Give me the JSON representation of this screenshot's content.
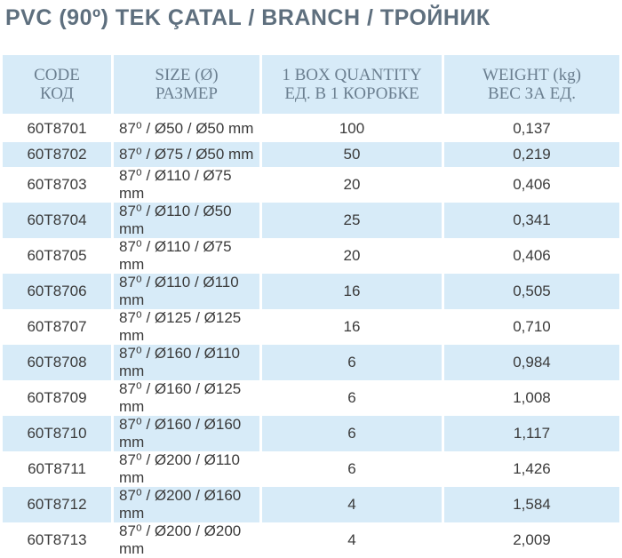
{
  "header": {
    "title": "PVC (90º) TEK ÇATAL / BRANCH / ТРОЙНИК"
  },
  "table": {
    "columns": [
      [
        "CODE",
        "КОД"
      ],
      [
        "SIZE (Ø)",
        "РАЗМЕР"
      ],
      [
        "1 BOX QUANTITY",
        "ЕД. В 1 КОРОБКЕ"
      ],
      [
        "WEIGHT (kg)",
        "ВЕС ЗА ЕД."
      ]
    ],
    "rows": [
      [
        "60T8701",
        "87⁰ / Ø50 / Ø50 mm",
        "100",
        "0,137"
      ],
      [
        "60T8702",
        "87⁰ / Ø75 / Ø50 mm",
        "50",
        "0,219"
      ],
      [
        "60T8703",
        "87⁰ / Ø110 / Ø75 mm",
        "20",
        "0,406"
      ],
      [
        "60T8704",
        "87⁰ / Ø110 / Ø50 mm",
        "25",
        "0,341"
      ],
      [
        "60T8705",
        "87⁰ / Ø110 / Ø75 mm",
        "20",
        "0,406"
      ],
      [
        "60T8706",
        "87⁰ / Ø110 / Ø110 mm",
        "16",
        "0,505"
      ],
      [
        "60T8707",
        "87⁰ / Ø125 / Ø125 mm",
        "16",
        "0,710"
      ],
      [
        "60T8708",
        "87⁰ / Ø160 / Ø110 mm",
        "6",
        "0,984"
      ],
      [
        "60T8709",
        "87⁰ / Ø160 / Ø125 mm",
        "6",
        "1,008"
      ],
      [
        "60T8710",
        "87⁰ / Ø160 / Ø160 mm",
        "6",
        "1,117"
      ],
      [
        "60T8711",
        "87⁰ / Ø200 / Ø110 mm",
        "6",
        "1,426"
      ],
      [
        "60T8712",
        "87⁰ / Ø200 / Ø160 mm",
        "4",
        "1,584"
      ],
      [
        "60T8713",
        "87⁰ / Ø200 / Ø200 mm",
        "4",
        "2,009"
      ]
    ]
  }
}
